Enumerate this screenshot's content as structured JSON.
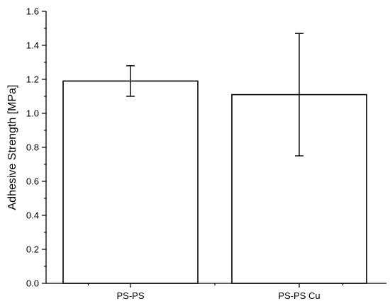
{
  "chart_data": {
    "type": "bar",
    "title": "",
    "xlabel": "",
    "ylabel": "Adhesive Strength [MPa]",
    "categories": [
      "PS-PS",
      "PS-PS Cu"
    ],
    "values": [
      1.19,
      1.11
    ],
    "error_low": [
      1.1,
      0.75
    ],
    "error_high": [
      1.28,
      1.47
    ],
    "ylim": [
      0,
      1.6
    ],
    "yticks": [
      "0.0",
      "0.2",
      "0.4",
      "0.6",
      "0.8",
      "1.0",
      "1.2",
      "1.4",
      "1.6"
    ],
    "grid": false,
    "bar_fill": "#ffffff",
    "bar_stroke": "#000000"
  }
}
